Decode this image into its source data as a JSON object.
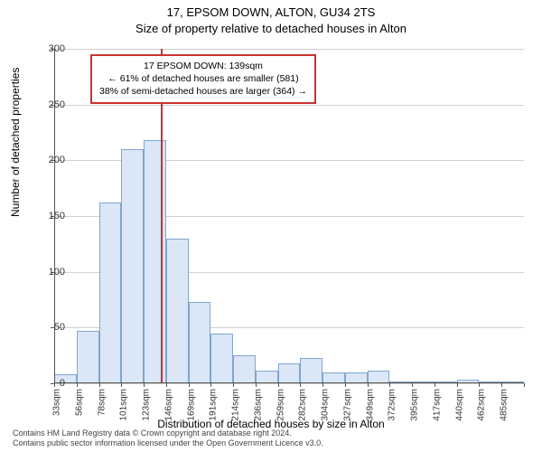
{
  "title": "17, EPSOM DOWN, ALTON, GU34 2TS",
  "subtitle": "Size of property relative to detached houses in Alton",
  "ylabel": "Number of detached properties",
  "xlabel": "Distribution of detached houses by size in Alton",
  "footer_line1": "Contains HM Land Registry data © Crown copyright and database right 2024.",
  "footer_line2": "Contains public sector information licensed under the Open Government Licence v3.0.",
  "annotation": {
    "line1": "17 EPSOM DOWN: 139sqm",
    "line2": "← 61% of detached houses are smaller (581)",
    "line3": "38% of semi-detached houses are larger (364) →"
  },
  "chart": {
    "type": "histogram",
    "ylim": [
      0,
      300
    ],
    "yticks": [
      0,
      50,
      100,
      150,
      200,
      250,
      300
    ],
    "x_labels": [
      "33sqm",
      "56sqm",
      "78sqm",
      "101sqm",
      "123sqm",
      "146sqm",
      "169sqm",
      "191sqm",
      "214sqm",
      "236sqm",
      "259sqm",
      "282sqm",
      "304sqm",
      "327sqm",
      "349sqm",
      "372sqm",
      "395sqm",
      "417sqm",
      "440sqm",
      "462sqm",
      "485sqm"
    ],
    "values": [
      8,
      47,
      162,
      210,
      218,
      130,
      73,
      45,
      25,
      11,
      18,
      23,
      10,
      10,
      11,
      2,
      0,
      0,
      3,
      0,
      1
    ],
    "marker_index": 4.75,
    "bar_fill": "#dbe7f6",
    "bar_stroke": "#7fa6cf",
    "grid_color": "#d0d0d0",
    "axis_color": "#555555",
    "marker_color": "#c83232",
    "background": "#ffffff",
    "label_fontsize": 12,
    "tick_fontsize": 10
  }
}
